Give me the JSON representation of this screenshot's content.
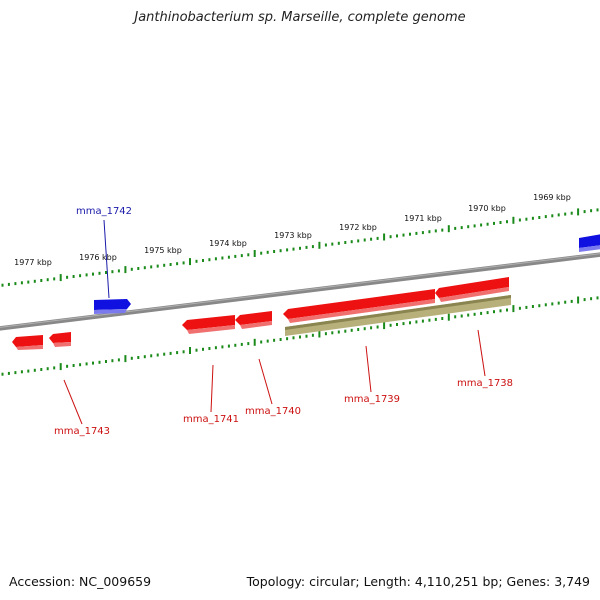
{
  "title": "Janthinobacterium sp. Marseille, complete genome",
  "footer": {
    "accession": "Accession: NC_009659",
    "summary": "Topology: circular; Length: 4,110,251 bp; Genes: 3,749"
  },
  "colors": {
    "forward_gene": "#1010e0",
    "reverse_gene": "#ee1111",
    "rna_feature": "#b8b07a",
    "backbone": "#888888",
    "tick": "#1a8a1a",
    "forward_label": "#1a1aaa",
    "reverse_label": "#cc1111"
  },
  "ruler_labels": [
    "1977 kbp",
    "1976 kbp",
    "1975 kbp",
    "1974 kbp",
    "1973 kbp",
    "1972 kbp",
    "1971 kbp",
    "1970 kbp",
    "1969 kbp"
  ],
  "genes": [
    {
      "name": "mma_1742",
      "strand": "forward"
    },
    {
      "name": "mma_1743",
      "strand": "reverse"
    },
    {
      "name": "mma_1741",
      "strand": "reverse"
    },
    {
      "name": "mma_1740",
      "strand": "reverse"
    },
    {
      "name": "mma_1739",
      "strand": "reverse"
    },
    {
      "name": "mma_1738",
      "strand": "reverse"
    }
  ]
}
